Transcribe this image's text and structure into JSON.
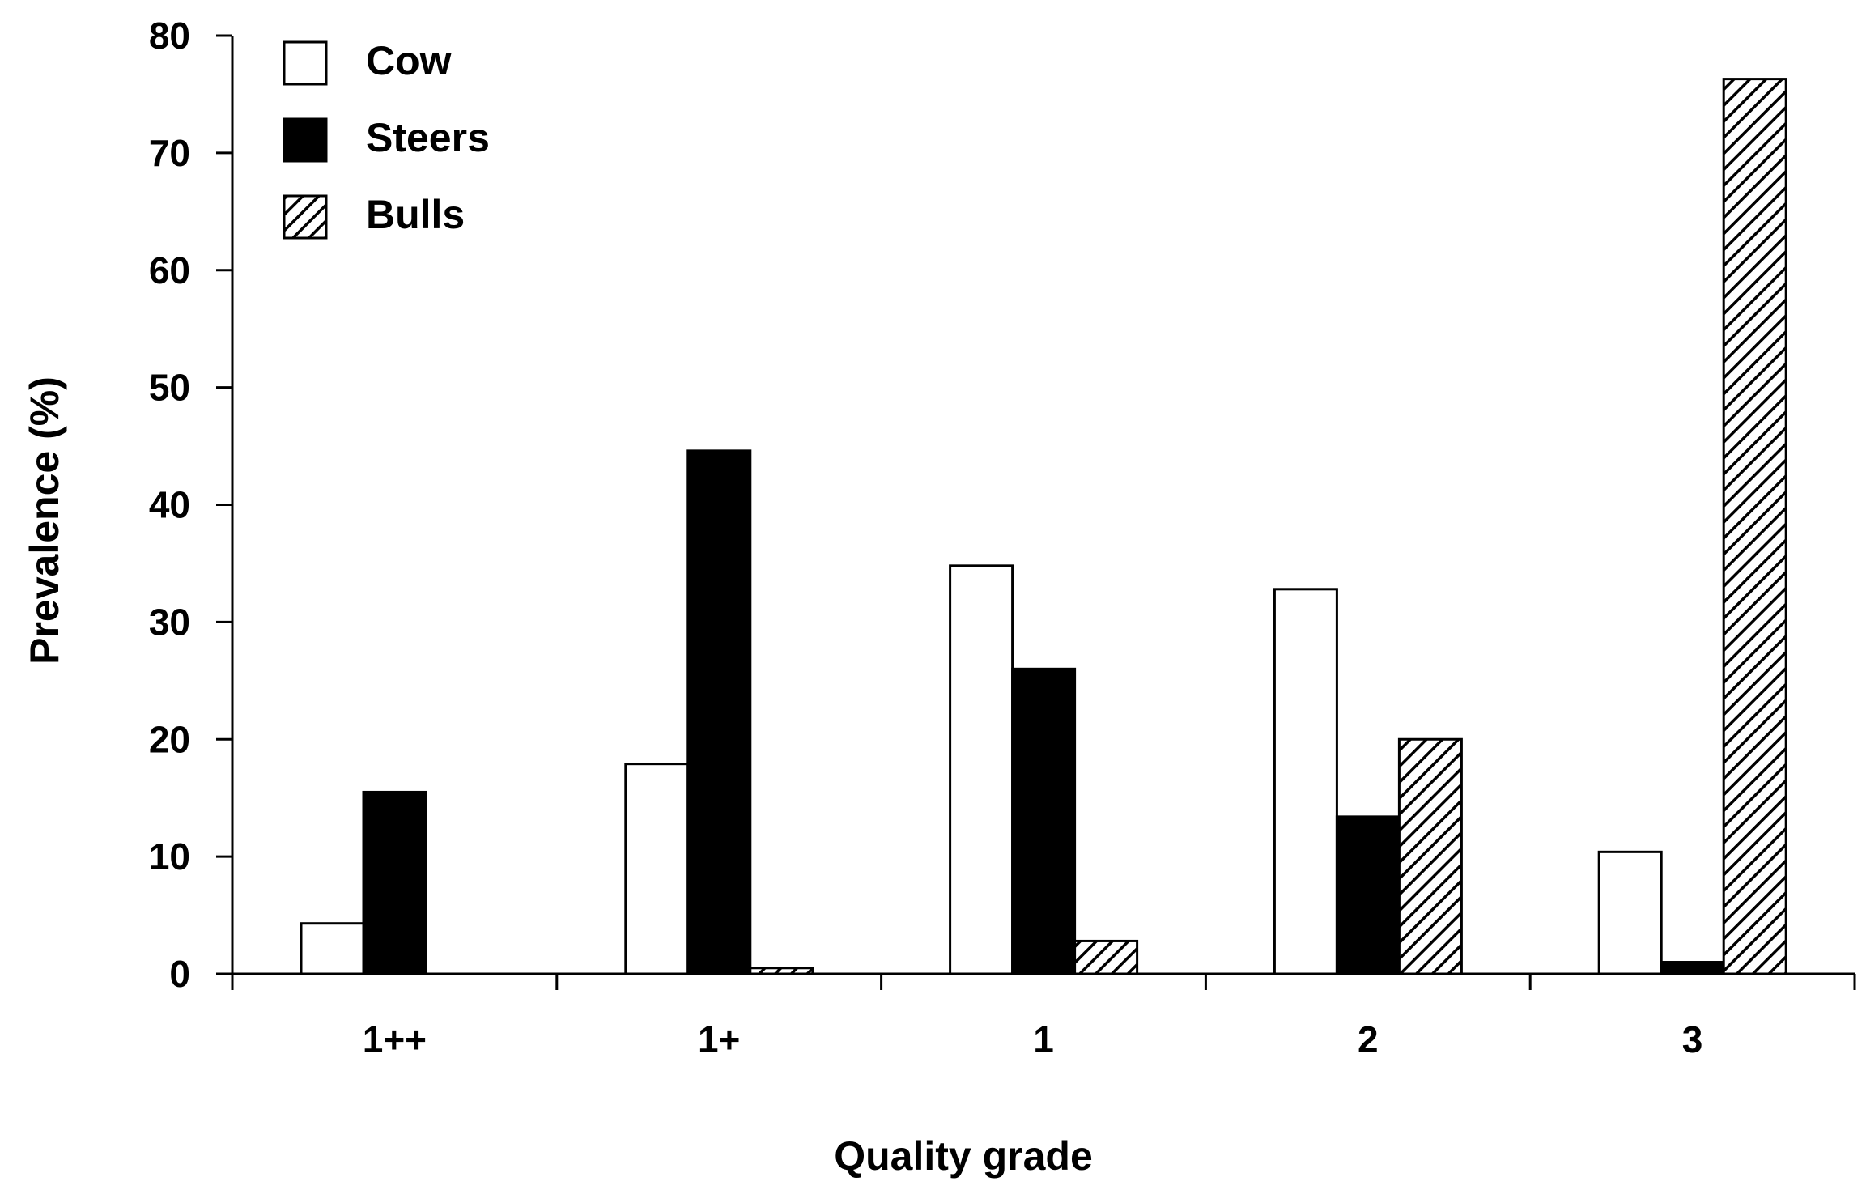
{
  "chart_data": {
    "type": "bar",
    "title": "",
    "xlabel": "Quality grade",
    "ylabel": "Prevalence (%)",
    "categories": [
      "1++",
      "1+",
      "1",
      "2",
      "3"
    ],
    "ylim": [
      0,
      80
    ],
    "yticks": [
      0,
      10,
      20,
      30,
      40,
      50,
      60,
      70,
      80
    ],
    "grid": false,
    "legend_position": "top-left",
    "series": [
      {
        "name": "Cow",
        "values": [
          4.3,
          17.9,
          34.8,
          32.8,
          10.4
        ],
        "fill": "#ffffff",
        "pattern": "none"
      },
      {
        "name": "Steers",
        "values": [
          15.5,
          44.6,
          26.0,
          13.4,
          1.0
        ],
        "fill": "#000000",
        "pattern": "none"
      },
      {
        "name": "Bulls",
        "values": [
          0.0,
          0.5,
          2.8,
          20.0,
          76.3
        ],
        "fill": "#ffffff",
        "pattern": "diagonal-hatch"
      }
    ]
  }
}
